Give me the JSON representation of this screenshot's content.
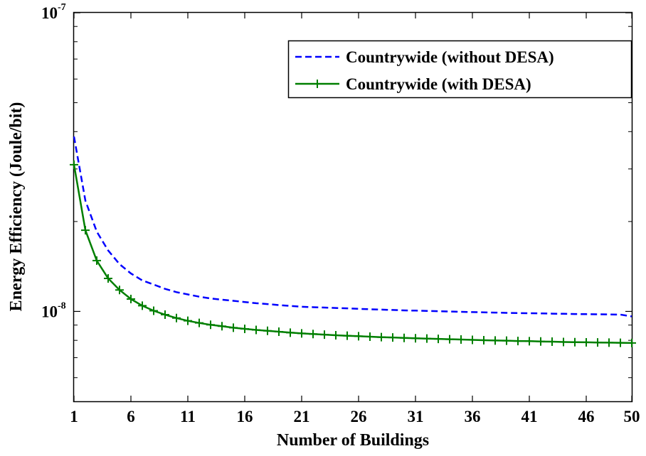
{
  "chart_data": {
    "type": "line",
    "xlabel": "Number of Buildings",
    "ylabel": "Energy Efficiency (Joule/bit)",
    "xlim": [
      1,
      50
    ],
    "ylim": [
      5e-09,
      1e-07
    ],
    "y_scale": "log",
    "grid": false,
    "legend_position": "top-right",
    "x_ticks": [
      1,
      6,
      11,
      16,
      21,
      26,
      31,
      36,
      41,
      46,
      50
    ],
    "x_tick_labels": [
      "1",
      "6",
      "11",
      "16",
      "21",
      "26",
      "31",
      "36",
      "41",
      "46",
      "50"
    ],
    "y_tick_labels": [
      {
        "value": 1e-08,
        "base": "10",
        "exponent": "-8"
      },
      {
        "value": 1e-07,
        "base": "10",
        "exponent": "-7"
      }
    ],
    "x": [
      1,
      2,
      3,
      4,
      5,
      6,
      7,
      8,
      9,
      10,
      11,
      12,
      13,
      14,
      15,
      16,
      17,
      18,
      19,
      20,
      21,
      22,
      23,
      24,
      25,
      26,
      27,
      28,
      29,
      30,
      31,
      32,
      33,
      34,
      35,
      36,
      37,
      38,
      39,
      40,
      41,
      42,
      43,
      44,
      45,
      46,
      47,
      48,
      49,
      50
    ],
    "series": [
      {
        "name": "Countrywide (without DESA)",
        "color": "#0000ff",
        "line_style": "dashed",
        "marker": "none",
        "values": [
          3.85e-08,
          2.35e-08,
          1.85e-08,
          1.6e-08,
          1.44e-08,
          1.34e-08,
          1.27e-08,
          1.23e-08,
          1.19e-08,
          1.16e-08,
          1.14e-08,
          1.12e-08,
          1.105e-08,
          1.095e-08,
          1.085e-08,
          1.075e-08,
          1.065e-08,
          1.058e-08,
          1.05e-08,
          1.043e-08,
          1.037e-08,
          1.033e-08,
          1.03e-08,
          1.027e-08,
          1.024e-08,
          1.02e-08,
          1.017e-08,
          1.014e-08,
          1.011e-08,
          1.008e-08,
          1.006e-08,
          1.004e-08,
          1.002e-08,
          9.99e-09,
          9.97e-09,
          9.95e-09,
          9.93e-09,
          9.91e-09,
          9.89e-09,
          9.87e-09,
          9.86e-09,
          9.85e-09,
          9.83e-09,
          9.82e-09,
          9.8e-09,
          9.79e-09,
          9.78e-09,
          9.77e-09,
          9.76e-09,
          9.62e-09
        ]
      },
      {
        "name": "Countrywide (with DESA)",
        "color": "#007f00",
        "line_style": "solid",
        "marker": "+",
        "values": [
          3.1e-08,
          1.87e-08,
          1.48e-08,
          1.29e-08,
          1.18e-08,
          1.1e-08,
          1.045e-08,
          1.005e-08,
          9.75e-09,
          9.5e-09,
          9.3e-09,
          9.15e-09,
          9.02e-09,
          8.92e-09,
          8.82e-09,
          8.74e-09,
          8.67e-09,
          8.61e-09,
          8.55e-09,
          8.49e-09,
          8.44e-09,
          8.4e-09,
          8.36e-09,
          8.32e-09,
          8.29e-09,
          8.26e-09,
          8.23e-09,
          8.2e-09,
          8.18e-09,
          8.15e-09,
          8.13e-09,
          8.11e-09,
          8.09e-09,
          8.07e-09,
          8.05e-09,
          8.03e-09,
          8.01e-09,
          7.99e-09,
          7.98e-09,
          7.96e-09,
          7.95e-09,
          7.93e-09,
          7.92e-09,
          7.9e-09,
          7.89e-09,
          7.88e-09,
          7.87e-09,
          7.86e-09,
          7.85e-09,
          7.84e-09
        ]
      }
    ]
  }
}
